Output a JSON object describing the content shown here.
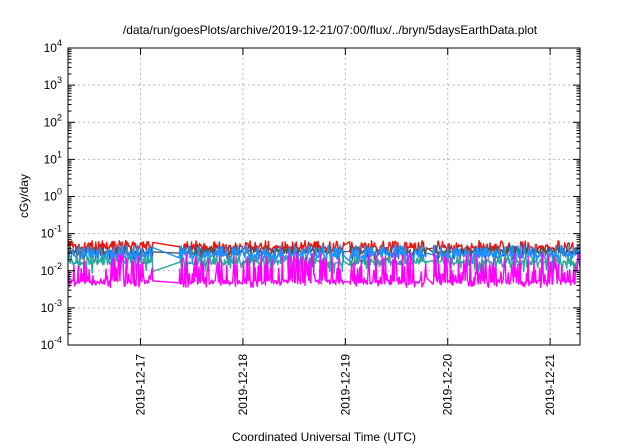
{
  "chart_data": {
    "type": "line",
    "title": "/data/run/goesPlots/archive/2019-12-21/07:00/flux/../bryn/5daysEarthData.plot",
    "xlabel": "Coordinated Universal Time (UTC)",
    "ylabel": "cGy/day",
    "y_scale": "log",
    "ylim_exponent": [
      -4,
      4
    ],
    "y_ticks": [
      {
        "base": "10",
        "exp": "-4"
      },
      {
        "base": "10",
        "exp": "-3"
      },
      {
        "base": "10",
        "exp": "-2"
      },
      {
        "base": "10",
        "exp": "-1"
      },
      {
        "base": "10",
        "exp": "0"
      },
      {
        "base": "10",
        "exp": "1"
      },
      {
        "base": "10",
        "exp": "2"
      },
      {
        "base": "10",
        "exp": "3"
      },
      {
        "base": "10",
        "exp": "4"
      }
    ],
    "xlim": [
      "2019-12-16 07:00",
      "2019-12-21 07:00"
    ],
    "x_ticks": [
      "2019-12-17",
      "2019-12-18",
      "2019-12-19",
      "2019-12-20",
      "2019-12-21"
    ],
    "grid": true,
    "gaps": [
      {
        "start": "2019-12-17 03:00",
        "end": "2019-12-17 09:00"
      },
      {
        "start": "2019-12-18 23:50",
        "end": "2019-12-19 01:00"
      },
      {
        "start": "2019-12-19 19:00",
        "end": "2019-12-19 20:30"
      }
    ],
    "series": [
      {
        "color": "#e8160e",
        "baseline": 0.04,
        "spike_peak": 0.065,
        "dip_low": 0.025
      },
      {
        "color": "#555555",
        "baseline": 0.03,
        "spike_peak": 0.045,
        "dip_low": 0.018
      },
      {
        "color": "#1e90ff",
        "baseline": 0.025,
        "spike_peak": 0.05,
        "dip_low": 0.015
      },
      {
        "color": "#2ca89a",
        "baseline": 0.016,
        "spike_peak": 0.025,
        "dip_low": 0.008
      },
      {
        "color": "#ff00ff",
        "baseline": 0.005,
        "spike_peak": 0.03,
        "dip_low": 0.0035
      }
    ]
  }
}
